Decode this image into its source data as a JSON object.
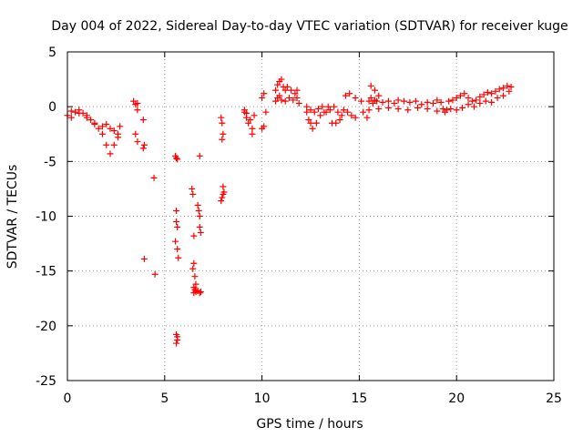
{
  "chart_data": {
    "type": "scatter",
    "title": "Day 004 of 2022, Sidereal Day-to-day VTEC variation (SDTVAR) for receiver kuge",
    "xlabel": "GPS time / hours",
    "ylabel": "SDTVAR / TECUs",
    "xlim": [
      0,
      25
    ],
    "ylim": [
      -25,
      5
    ],
    "xticks": [
      "0",
      "5",
      "10",
      "15",
      "20",
      "25"
    ],
    "yticks": [
      "5",
      "0",
      "-5",
      "-10",
      "-15",
      "-20",
      "-25"
    ],
    "grid": true,
    "legend": "none",
    "marker": "+",
    "series": [
      {
        "name": "SDTVAR",
        "color": "#ff0000",
        "x": [
          0.0,
          0.2,
          0.4,
          0.6,
          0.8,
          1.0,
          1.2,
          1.4,
          1.6,
          1.8,
          2.0,
          2.2,
          2.4,
          2.6,
          2.7,
          0.2,
          0.6,
          1.0,
          1.4,
          1.8,
          2.0,
          2.2,
          2.4,
          2.6,
          3.4,
          3.5,
          3.6,
          3.6,
          3.5,
          3.6,
          3.9,
          3.9,
          3.95,
          4.45,
          4.5,
          3.95,
          5.55,
          5.6,
          5.65,
          5.6,
          5.6,
          5.65,
          5.55,
          5.65,
          5.7,
          5.6,
          5.65,
          5.6,
          5.65,
          6.4,
          6.45,
          6.5,
          6.5,
          6.45,
          6.55,
          6.6,
          6.6,
          6.5,
          6.5,
          6.55,
          6.6,
          6.7,
          6.8,
          6.85,
          6.8,
          6.75,
          6.7,
          6.8,
          6.85,
          6.8,
          7.9,
          7.95,
          8.0,
          7.95,
          8.0,
          8.05,
          7.9,
          7.95,
          8.0,
          9.1,
          9.2,
          9.3,
          9.4,
          9.5,
          9.5,
          9.6,
          9.1,
          9.2,
          10.0,
          10.1,
          10.2,
          10.1,
          10.0,
          10.7,
          10.8,
          10.9,
          11.0,
          11.1,
          11.2,
          11.3,
          11.5,
          11.7,
          11.8,
          11.9,
          11.8,
          10.7,
          10.8,
          10.9,
          11.0,
          11.2,
          11.4,
          11.6,
          12.3,
          12.4,
          12.5,
          12.6,
          12.8,
          13.0,
          13.2,
          13.4,
          13.6,
          13.8,
          14.0,
          14.2,
          14.4,
          14.6,
          14.8,
          12.3,
          12.5,
          12.7,
          12.9,
          13.1,
          13.3,
          13.5,
          13.7,
          13.9,
          14.1,
          14.3,
          14.5,
          14.8,
          15.2,
          15.4,
          15.1,
          15.6,
          15.8,
          16.0,
          15.5,
          15.6,
          15.7,
          15.8,
          15.9,
          16.2,
          16.5,
          16.8,
          17.0,
          17.3,
          17.6,
          17.9,
          18.2,
          18.5,
          18.8,
          19.0,
          19.2,
          15.5,
          16.0,
          16.5,
          17.0,
          17.5,
          18.0,
          18.5,
          19.0,
          19.3,
          19.4,
          19.5,
          19.6,
          19.8,
          20.0,
          20.2,
          20.4,
          20.6,
          20.8,
          21.0,
          21.2,
          21.4,
          21.6,
          21.8,
          22.0,
          22.2,
          22.4,
          22.6,
          22.8,
          19.7,
          20.0,
          20.3,
          20.6,
          20.9,
          21.2,
          21.5,
          21.8,
          22.1,
          22.4,
          22.7
        ],
        "y": [
          -0.8,
          -0.4,
          -0.5,
          -0.3,
          -0.6,
          -0.8,
          -1.2,
          -1.6,
          -2.0,
          -2.5,
          -3.5,
          -4.3,
          -3.5,
          -2.5,
          -1.8,
          -1.0,
          -0.6,
          -1.0,
          -1.5,
          -1.8,
          -1.6,
          -2.0,
          -2.2,
          -2.8,
          0.5,
          0.2,
          0.3,
          -0.3,
          -2.5,
          -3.2,
          -1.2,
          -3.8,
          -3.5,
          -6.5,
          -15.3,
          -13.9,
          -4.5,
          -4.7,
          -4.8,
          -9.5,
          -10.5,
          -11.0,
          -12.3,
          -13.0,
          -13.8,
          -20.8,
          -21.3,
          -21.6,
          -21.0,
          -7.5,
          -8.0,
          -11.8,
          -14.3,
          -14.8,
          -15.5,
          -16.2,
          -16.8,
          -17.0,
          -16.5,
          -16.7,
          -16.9,
          -16.8,
          -17.0,
          -16.9,
          -10.0,
          -9.5,
          -9.0,
          -11.0,
          -11.5,
          -4.5,
          -1.0,
          -1.5,
          -2.5,
          -3.0,
          -7.3,
          -7.8,
          -8.6,
          -8.3,
          -8.0,
          -0.5,
          -1.0,
          -1.5,
          -1.2,
          -2.5,
          -2.0,
          -0.8,
          -0.3,
          -0.6,
          0.8,
          1.2,
          -0.5,
          -1.8,
          -2.0,
          1.5,
          2.0,
          2.3,
          2.5,
          1.8,
          1.5,
          1.8,
          1.5,
          1.2,
          0.8,
          0.3,
          1.5,
          0.5,
          0.8,
          1.0,
          0.6,
          0.5,
          0.8,
          0.6,
          -0.5,
          -1.2,
          -1.5,
          -2.0,
          -1.5,
          -0.8,
          -0.5,
          0.0,
          -1.5,
          -1.5,
          -1.2,
          -0.3,
          -0.5,
          -0.8,
          -1.0,
          0.0,
          -0.3,
          -0.5,
          -0.2,
          0.0,
          -0.5,
          -0.3,
          0.0,
          -0.5,
          -0.8,
          1.0,
          1.2,
          0.8,
          -0.5,
          -1.0,
          0.5,
          1.9,
          1.5,
          1.0,
          0.5,
          0.8,
          0.3,
          0.6,
          0.5,
          0.4,
          0.5,
          0.3,
          0.6,
          0.5,
          0.4,
          0.5,
          0.2,
          0.4,
          0.3,
          0.6,
          0.4,
          -0.3,
          -0.2,
          -0.1,
          -0.2,
          -0.3,
          -0.1,
          -0.2,
          -0.4,
          -0.2,
          -0.5,
          -0.3,
          0.5,
          0.6,
          0.8,
          1.0,
          1.2,
          0.8,
          0.5,
          0.6,
          0.9,
          1.1,
          1.3,
          1.2,
          1.4,
          1.6,
          1.7,
          1.9,
          1.8,
          -0.2,
          -0.3,
          -0.1,
          0.2,
          0.0,
          0.3,
          0.5,
          0.4,
          0.8,
          1.0,
          1.4
        ]
      }
    ]
  }
}
